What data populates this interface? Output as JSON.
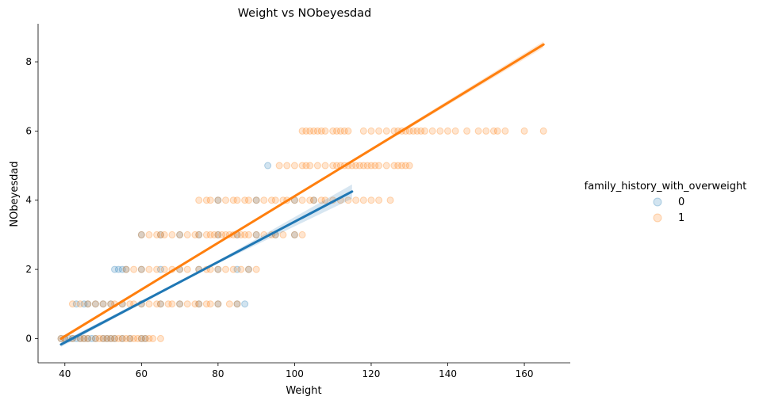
{
  "chart_data": {
    "type": "scatter",
    "title": "Weight vs NObeyesdad",
    "xlabel": "Weight",
    "ylabel": "NObeyesdad",
    "xlim": [
      33,
      172
    ],
    "ylim": [
      -0.7,
      9.1
    ],
    "xticks": [
      40,
      60,
      80,
      100,
      120,
      140,
      160
    ],
    "yticks": [
      0,
      2,
      4,
      6,
      8
    ],
    "grid": false,
    "legend": {
      "title": "family_history_with_overweight",
      "placement": "right",
      "entries": [
        {
          "label": "0",
          "color": "#1f77b4"
        },
        {
          "label": "1",
          "color": "#ff7f0e"
        }
      ]
    },
    "series": [
      {
        "name": "0",
        "color": "#1f77b4",
        "point_alpha": 0.2,
        "points": [
          [
            39,
            0
          ],
          [
            40,
            0
          ],
          [
            41,
            0
          ],
          [
            42,
            0
          ],
          [
            43,
            0
          ],
          [
            44,
            0
          ],
          [
            45,
            0
          ],
          [
            46,
            0
          ],
          [
            47,
            0
          ],
          [
            48,
            0
          ],
          [
            50,
            0
          ],
          [
            51,
            0
          ],
          [
            52,
            0
          ],
          [
            53,
            0
          ],
          [
            55,
            0
          ],
          [
            57,
            0
          ],
          [
            60,
            0
          ],
          [
            61,
            0
          ],
          [
            43,
            1
          ],
          [
            45,
            1
          ],
          [
            46,
            1
          ],
          [
            48,
            1
          ],
          [
            50,
            1
          ],
          [
            52,
            1
          ],
          [
            55,
            1
          ],
          [
            60,
            1
          ],
          [
            65,
            1
          ],
          [
            70,
            1
          ],
          [
            75,
            1
          ],
          [
            80,
            1
          ],
          [
            85,
            1
          ],
          [
            87,
            1
          ],
          [
            53,
            2
          ],
          [
            54,
            2
          ],
          [
            55,
            2
          ],
          [
            56,
            2
          ],
          [
            60,
            2
          ],
          [
            65,
            2
          ],
          [
            70,
            2
          ],
          [
            75,
            2
          ],
          [
            80,
            2
          ],
          [
            85,
            2
          ],
          [
            88,
            2
          ],
          [
            60,
            3
          ],
          [
            65,
            3
          ],
          [
            70,
            3
          ],
          [
            75,
            3
          ],
          [
            80,
            3
          ],
          [
            85,
            3
          ],
          [
            90,
            3
          ],
          [
            95,
            3
          ],
          [
            100,
            3
          ],
          [
            80,
            4
          ],
          [
            90,
            4
          ],
          [
            100,
            4
          ],
          [
            105,
            4
          ],
          [
            93,
            5
          ]
        ],
        "regression": {
          "x": [
            39,
            115
          ],
          "y": [
            -0.17,
            4.25
          ]
        }
      },
      {
        "name": "1",
        "color": "#ff7f0e",
        "point_alpha": 0.2,
        "points": [
          [
            39,
            0
          ],
          [
            40,
            0
          ],
          [
            42,
            0
          ],
          [
            44,
            0
          ],
          [
            45,
            0
          ],
          [
            46,
            0
          ],
          [
            48,
            0
          ],
          [
            49,
            0
          ],
          [
            50,
            0
          ],
          [
            51,
            0
          ],
          [
            52,
            0
          ],
          [
            53,
            0
          ],
          [
            54,
            0
          ],
          [
            55,
            0
          ],
          [
            56,
            0
          ],
          [
            57,
            0
          ],
          [
            58,
            0
          ],
          [
            59,
            0
          ],
          [
            60,
            0
          ],
          [
            61,
            0
          ],
          [
            62,
            0
          ],
          [
            63,
            0
          ],
          [
            65,
            0
          ],
          [
            42,
            1
          ],
          [
            44,
            1
          ],
          [
            46,
            1
          ],
          [
            48,
            1
          ],
          [
            50,
            1
          ],
          [
            52,
            1
          ],
          [
            53,
            1
          ],
          [
            55,
            1
          ],
          [
            57,
            1
          ],
          [
            58,
            1
          ],
          [
            60,
            1
          ],
          [
            62,
            1
          ],
          [
            64,
            1
          ],
          [
            65,
            1
          ],
          [
            67,
            1
          ],
          [
            68,
            1
          ],
          [
            70,
            1
          ],
          [
            72,
            1
          ],
          [
            74,
            1
          ],
          [
            75,
            1
          ],
          [
            77,
            1
          ],
          [
            78,
            1
          ],
          [
            80,
            1
          ],
          [
            83,
            1
          ],
          [
            85,
            1
          ],
          [
            56,
            2
          ],
          [
            58,
            2
          ],
          [
            60,
            2
          ],
          [
            62,
            2
          ],
          [
            64,
            2
          ],
          [
            66,
            2
          ],
          [
            68,
            2
          ],
          [
            70,
            2
          ],
          [
            72,
            2
          ],
          [
            75,
            2
          ],
          [
            77,
            2
          ],
          [
            78,
            2
          ],
          [
            80,
            2
          ],
          [
            82,
            2
          ],
          [
            84,
            2
          ],
          [
            86,
            2
          ],
          [
            88,
            2
          ],
          [
            90,
            2
          ],
          [
            60,
            3
          ],
          [
            62,
            3
          ],
          [
            64,
            3
          ],
          [
            65,
            3
          ],
          [
            66,
            3
          ],
          [
            68,
            3
          ],
          [
            70,
            3
          ],
          [
            72,
            3
          ],
          [
            74,
            3
          ],
          [
            75,
            3
          ],
          [
            77,
            3
          ],
          [
            78,
            3
          ],
          [
            79,
            3
          ],
          [
            80,
            3
          ],
          [
            81,
            3
          ],
          [
            82,
            3
          ],
          [
            83,
            3
          ],
          [
            84,
            3
          ],
          [
            85,
            3
          ],
          [
            86,
            3
          ],
          [
            87,
            3
          ],
          [
            88,
            3
          ],
          [
            90,
            3
          ],
          [
            92,
            3
          ],
          [
            94,
            3
          ],
          [
            95,
            3
          ],
          [
            97,
            3
          ],
          [
            100,
            3
          ],
          [
            102,
            3
          ],
          [
            75,
            4
          ],
          [
            77,
            4
          ],
          [
            78,
            4
          ],
          [
            80,
            4
          ],
          [
            82,
            4
          ],
          [
            84,
            4
          ],
          [
            85,
            4
          ],
          [
            87,
            4
          ],
          [
            88,
            4
          ],
          [
            90,
            4
          ],
          [
            92,
            4
          ],
          [
            94,
            4
          ],
          [
            95,
            4
          ],
          [
            97,
            4
          ],
          [
            98,
            4
          ],
          [
            100,
            4
          ],
          [
            102,
            4
          ],
          [
            104,
            4
          ],
          [
            105,
            4
          ],
          [
            107,
            4
          ],
          [
            108,
            4
          ],
          [
            110,
            4
          ],
          [
            112,
            4
          ],
          [
            114,
            4
          ],
          [
            116,
            4
          ],
          [
            118,
            4
          ],
          [
            120,
            4
          ],
          [
            122,
            4
          ],
          [
            125,
            4
          ],
          [
            96,
            5
          ],
          [
            98,
            5
          ],
          [
            100,
            5
          ],
          [
            102,
            5
          ],
          [
            103,
            5
          ],
          [
            104,
            5
          ],
          [
            106,
            5
          ],
          [
            108,
            5
          ],
          [
            110,
            5
          ],
          [
            111,
            5
          ],
          [
            112,
            5
          ],
          [
            113,
            5
          ],
          [
            114,
            5
          ],
          [
            115,
            5
          ],
          [
            116,
            5
          ],
          [
            117,
            5
          ],
          [
            118,
            5
          ],
          [
            119,
            5
          ],
          [
            120,
            5
          ],
          [
            121,
            5
          ],
          [
            122,
            5
          ],
          [
            124,
            5
          ],
          [
            126,
            5
          ],
          [
            127,
            5
          ],
          [
            128,
            5
          ],
          [
            129,
            5
          ],
          [
            130,
            5
          ],
          [
            102,
            6
          ],
          [
            103,
            6
          ],
          [
            104,
            6
          ],
          [
            105,
            6
          ],
          [
            106,
            6
          ],
          [
            107,
            6
          ],
          [
            108,
            6
          ],
          [
            110,
            6
          ],
          [
            111,
            6
          ],
          [
            112,
            6
          ],
          [
            113,
            6
          ],
          [
            114,
            6
          ],
          [
            118,
            6
          ],
          [
            120,
            6
          ],
          [
            122,
            6
          ],
          [
            124,
            6
          ],
          [
            126,
            6
          ],
          [
            127,
            6
          ],
          [
            128,
            6
          ],
          [
            129,
            6
          ],
          [
            130,
            6
          ],
          [
            131,
            6
          ],
          [
            132,
            6
          ],
          [
            133,
            6
          ],
          [
            134,
            6
          ],
          [
            136,
            6
          ],
          [
            138,
            6
          ],
          [
            140,
            6
          ],
          [
            142,
            6
          ],
          [
            145,
            6
          ],
          [
            148,
            6
          ],
          [
            150,
            6
          ],
          [
            152,
            6
          ],
          [
            153,
            6
          ],
          [
            155,
            6
          ],
          [
            160,
            6
          ],
          [
            165,
            6
          ]
        ],
        "regression": {
          "x": [
            39,
            165
          ],
          "y": [
            0.0,
            8.5
          ]
        }
      }
    ]
  }
}
